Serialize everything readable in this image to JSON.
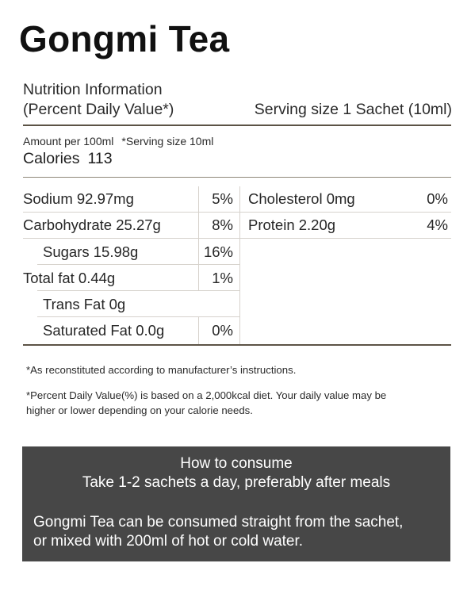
{
  "product": {
    "title": "Gongmi Tea"
  },
  "nutrition": {
    "heading_line1": "Nutrition Information",
    "heading_line2": "(Percent Daily Value*)",
    "serving_size": "Serving size 1 Sachet (10ml)",
    "amount_per": "Amount per 100ml",
    "serving_note": "*Serving size 10ml",
    "calories_label": "Calories",
    "calories_value": "113",
    "left_rows": [
      {
        "name": "Sodium 92.97mg",
        "pct": "5%"
      },
      {
        "name": "Carbohydrate 25.27g",
        "pct": "8%"
      },
      {
        "name": "Sugars 15.98g",
        "pct": "16%"
      },
      {
        "name": "Total fat 0.44g",
        "pct": "1%"
      },
      {
        "name": "Trans Fat 0g",
        "pct": ""
      },
      {
        "name": "Saturated Fat 0.0g",
        "pct": "0%"
      }
    ],
    "right_rows": [
      {
        "name": "Cholesterol 0mg",
        "pct": "0%"
      },
      {
        "name": "Protein 2.20g",
        "pct": "4%"
      }
    ]
  },
  "notes": {
    "reconstituted": "*As reconstituted according to manufacturer’s instructions.",
    "daily_value_line1": "*Percent Daily Value(%) is based on a 2,000kcal diet. Your daily value may be",
    "daily_value_line2": "higher or lower depending on your calorie needs."
  },
  "how_to": {
    "title": "How to consume",
    "dosage": "Take 1-2 sachets a day, preferably after meals",
    "usage_line1": "Gongmi Tea can be consumed straight from the sachet,",
    "usage_line2": "or mixed with 200ml of hot or cold water."
  },
  "colors": {
    "rule": "#5c5346",
    "panel_background": "#474747",
    "panel_text": "#ffffff"
  }
}
